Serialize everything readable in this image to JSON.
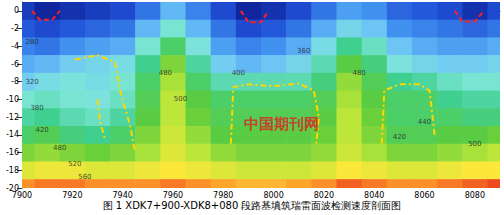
{
  "chart_data": {
    "type": "contour",
    "title": "图 1 XDK7+900-XDK8+080 段路基填筑瑞雷面波检测速度剖面图",
    "xlim": [
      7900,
      8090
    ],
    "ylim": [
      -20,
      1
    ],
    "xticks": [
      7900,
      7920,
      7940,
      7960,
      7980,
      8000,
      8020,
      8040,
      8060,
      8080
    ],
    "yticks": [
      -20,
      -18,
      -16,
      -14,
      -12,
      -10,
      -8,
      -6,
      -4,
      -2,
      0
    ],
    "grid": false,
    "color_range": [
      200,
      640
    ],
    "colors": [
      "#0a1a8c",
      "#1f4fd6",
      "#3f8ff0",
      "#6fc8f5",
      "#7fe6d8",
      "#3fcf8f",
      "#5ccc3c",
      "#b9e63a",
      "#ffe83a",
      "#ff9a2a",
      "#e8321a"
    ],
    "cells": {
      "x": [
        7900,
        7910,
        7920,
        7930,
        7940,
        7950,
        7960,
        7970,
        7980,
        7990,
        8000,
        8010,
        8020,
        8030,
        8040,
        8050,
        8060,
        8070,
        8080,
        8090
      ],
      "y": [
        0,
        -2,
        -4,
        -6,
        -8,
        -10,
        -12,
        -14,
        -16,
        -18,
        -20
      ],
      "values": [
        [
          230,
          210,
          220,
          230,
          240,
          270,
          320,
          280,
          240,
          210,
          220,
          240,
          270,
          300,
          290,
          260,
          250,
          240,
          220,
          240
        ],
        [
          250,
          240,
          250,
          260,
          270,
          320,
          380,
          320,
          270,
          240,
          250,
          270,
          310,
          350,
          330,
          290,
          280,
          270,
          260,
          270
        ],
        [
          280,
          270,
          290,
          300,
          310,
          380,
          440,
          370,
          300,
          280,
          290,
          310,
          360,
          420,
          390,
          330,
          310,
          300,
          300,
          310
        ],
        [
          310,
          320,
          340,
          350,
          360,
          420,
          480,
          410,
          340,
          320,
          330,
          350,
          400,
          460,
          430,
          370,
          350,
          340,
          340,
          350
        ],
        [
          340,
          360,
          370,
          360,
          380,
          440,
          500,
          440,
          400,
          400,
          400,
          400,
          430,
          490,
          450,
          420,
          410,
          390,
          380,
          380
        ],
        [
          380,
          390,
          380,
          370,
          390,
          450,
          510,
          460,
          440,
          440,
          440,
          440,
          450,
          500,
          460,
          440,
          440,
          420,
          410,
          410
        ],
        [
          410,
          420,
          400,
          390,
          410,
          460,
          510,
          470,
          450,
          450,
          450,
          450,
          460,
          510,
          470,
          440,
          440,
          440,
          430,
          430
        ],
        [
          440,
          450,
          430,
          420,
          440,
          480,
          520,
          490,
          460,
          460,
          460,
          460,
          470,
          510,
          480,
          450,
          450,
          460,
          460,
          470
        ],
        [
          480,
          490,
          480,
          470,
          480,
          500,
          530,
          510,
          490,
          480,
          480,
          480,
          490,
          520,
          500,
          480,
          480,
          490,
          500,
          510
        ],
        [
          530,
          540,
          540,
          530,
          530,
          540,
          550,
          540,
          530,
          520,
          520,
          520,
          530,
          550,
          540,
          530,
          530,
          540,
          550,
          550
        ],
        [
          600,
          610,
          610,
          600,
          600,
          600,
          610,
          600,
          590,
          580,
          580,
          590,
          600,
          620,
          610,
          600,
          600,
          610,
          620,
          630
        ]
      ]
    },
    "outlines": [
      {
        "color": "#ff2020",
        "line_style": "dashed",
        "x": [
          7904,
          7907,
          7912,
          7915
        ],
        "y": [
          0,
          -1,
          -1,
          0
        ]
      },
      {
        "color": "#ff2020",
        "line_style": "dashed",
        "x": [
          7987,
          7990,
          7995,
          7998
        ],
        "y": [
          0,
          -1.3,
          -1.3,
          0
        ]
      },
      {
        "color": "#ff2020",
        "line_style": "dashed",
        "x": [
          8072,
          8075,
          8080,
          8083
        ],
        "y": [
          0,
          -1.2,
          -1.2,
          -0.2
        ]
      },
      {
        "color": "#ffd700",
        "line_style": "dashdot",
        "x": [
          7921,
          7930,
          7937,
          7939,
          7943,
          7945
        ],
        "y": [
          -5.5,
          -5,
          -5.8,
          -9,
          -13,
          -16
        ]
      },
      {
        "color": "#ffd700",
        "line_style": "dashdot",
        "x": [
          7930,
          7931,
          7933
        ],
        "y": [
          -10,
          -12.5,
          -14.5
        ]
      },
      {
        "color": "#ffd700",
        "line_style": "dashdot",
        "x": [
          7983,
          7984,
          7990,
          8000,
          8010,
          8016,
          8018,
          8017
        ],
        "y": [
          -15,
          -8.6,
          -8.3,
          -8.5,
          -8.2,
          -9,
          -12,
          -15
        ]
      },
      {
        "color": "#ffd700",
        "line_style": "dashdot",
        "x": [
          8043,
          8044,
          8050,
          8058,
          8062,
          8064
        ],
        "y": [
          -15,
          -9,
          -8.3,
          -8.3,
          -9,
          -14
        ]
      }
    ],
    "annotations": [
      {
        "text": "280",
        "x": 7904,
        "y": -3.5
      },
      {
        "text": "320",
        "x": 7904,
        "y": -8
      },
      {
        "text": "380",
        "x": 7906,
        "y": -11
      },
      {
        "text": "420",
        "x": 7908,
        "y": -13.5
      },
      {
        "text": "480",
        "x": 7915,
        "y": -15.5
      },
      {
        "text": "520",
        "x": 7921,
        "y": -17.3
      },
      {
        "text": "560",
        "x": 7925,
        "y": -18.8
      },
      {
        "text": "480",
        "x": 7957,
        "y": -7
      },
      {
        "text": "500",
        "x": 7963,
        "y": -10
      },
      {
        "text": "400",
        "x": 7986,
        "y": -7
      },
      {
        "text": "360",
        "x": 8012,
        "y": -4.5
      },
      {
        "text": "480",
        "x": 8034,
        "y": -7
      },
      {
        "text": "440",
        "x": 8060,
        "y": -12.5
      },
      {
        "text": "420",
        "x": 8050,
        "y": -14.2
      },
      {
        "text": "500",
        "x": 8080,
        "y": -15
      },
      {
        "text": "中国期刊网",
        "x": 8003,
        "y": -12.8,
        "color": "#e02020"
      }
    ]
  }
}
